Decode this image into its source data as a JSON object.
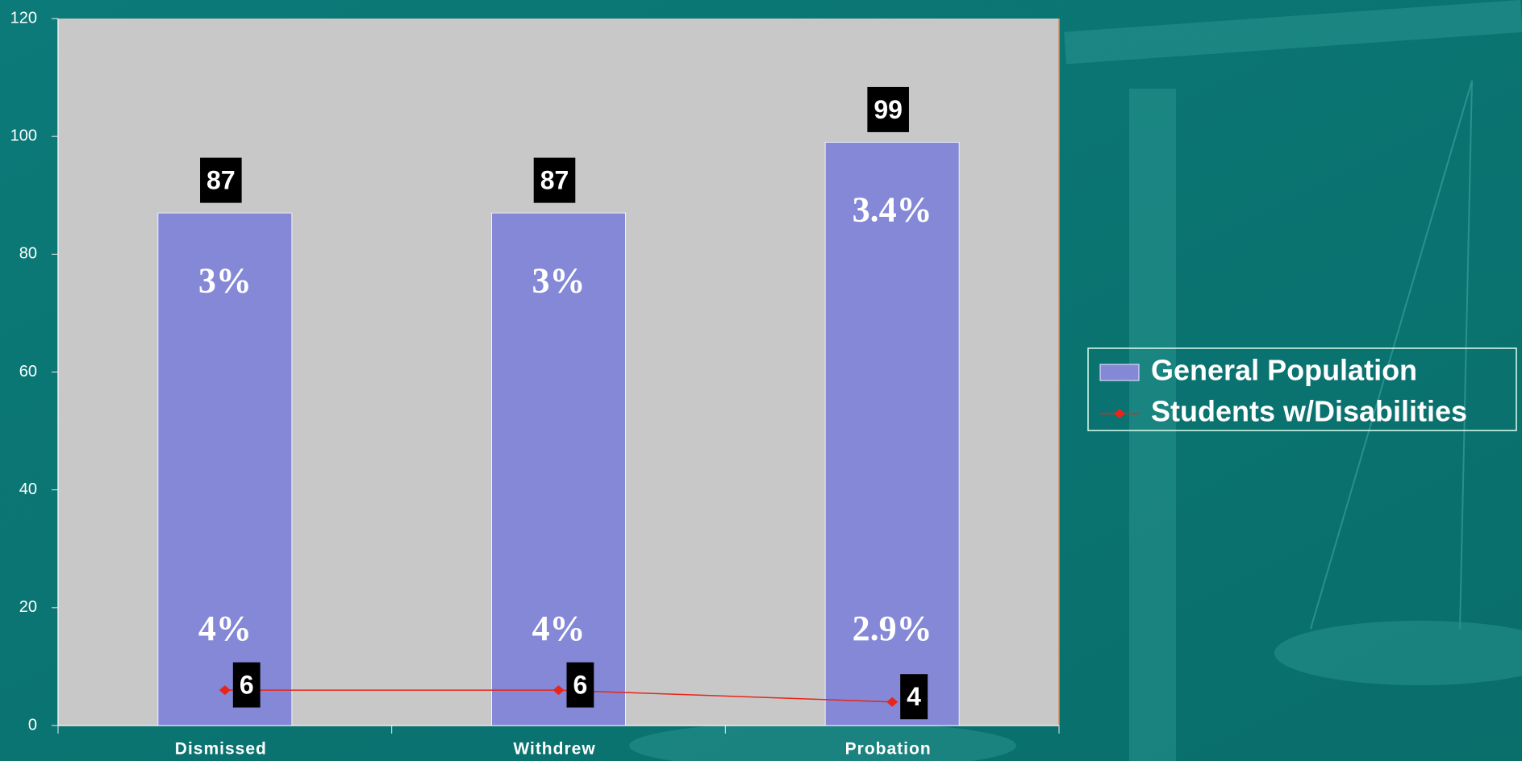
{
  "chart_data": {
    "type": "bar",
    "categories": [
      "Dismissed",
      "Withdrew",
      "Probation"
    ],
    "series": [
      {
        "name": "General Population",
        "color": "#8488d6",
        "type": "bar",
        "values": [
          87,
          87,
          99
        ]
      },
      {
        "name": "Students w/Disabilities",
        "color": "#e8251a",
        "type": "line",
        "values": [
          6,
          6,
          4
        ]
      }
    ],
    "annotations": [
      [
        "3%",
        "4%"
      ],
      [
        "3%",
        "4%"
      ],
      [
        "3.4%",
        "2.9%"
      ]
    ],
    "ylim": [
      0,
      120
    ],
    "yticks": [
      0,
      20,
      40,
      60,
      80,
      100,
      120
    ],
    "legend": "right"
  }
}
